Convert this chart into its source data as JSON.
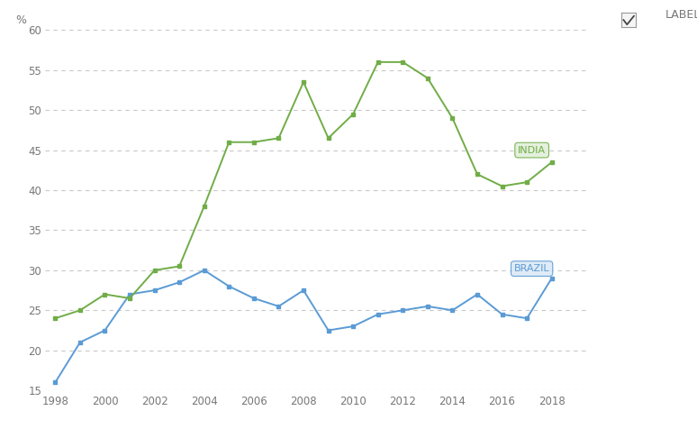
{
  "years": [
    1998,
    1999,
    2000,
    2001,
    2002,
    2003,
    2004,
    2005,
    2006,
    2007,
    2008,
    2009,
    2010,
    2011,
    2012,
    2013,
    2014,
    2015,
    2016,
    2017,
    2018
  ],
  "brazil": [
    16.0,
    21.0,
    22.5,
    27.0,
    27.5,
    28.5,
    30.0,
    28.0,
    26.5,
    25.5,
    27.5,
    22.5,
    23.0,
    24.5,
    25.0,
    25.5,
    25.0,
    27.0,
    24.5,
    24.0,
    29.0
  ],
  "india": [
    24.0,
    25.0,
    27.0,
    26.5,
    30.0,
    30.5,
    38.0,
    46.0,
    46.0,
    46.5,
    53.5,
    46.5,
    49.5,
    56.0,
    56.0,
    54.0,
    49.0,
    42.0,
    40.5,
    41.0,
    43.5
  ],
  "brazil_color": "#5b9bd5",
  "india_color": "#70ad47",
  "ylim": [
    15,
    60
  ],
  "yticks": [
    15,
    20,
    25,
    30,
    35,
    40,
    45,
    50,
    55,
    60
  ],
  "xlim_left": 1997.6,
  "xlim_right": 2019.5,
  "xticks": [
    1998,
    2000,
    2002,
    2004,
    2006,
    2008,
    2010,
    2012,
    2014,
    2016,
    2018
  ],
  "ylabel": "%",
  "background_color": "#ffffff",
  "grid_color": "#c8c8c8",
  "label_brazil_text": "BRAZIL",
  "label_india_text": "INDIA",
  "legend_label": "LABEL",
  "brazil_label_bg": "#dce9f5",
  "india_label_bg": "#e2efda",
  "brazil_label_color": "#5b9bd5",
  "india_label_color": "#70ad47"
}
